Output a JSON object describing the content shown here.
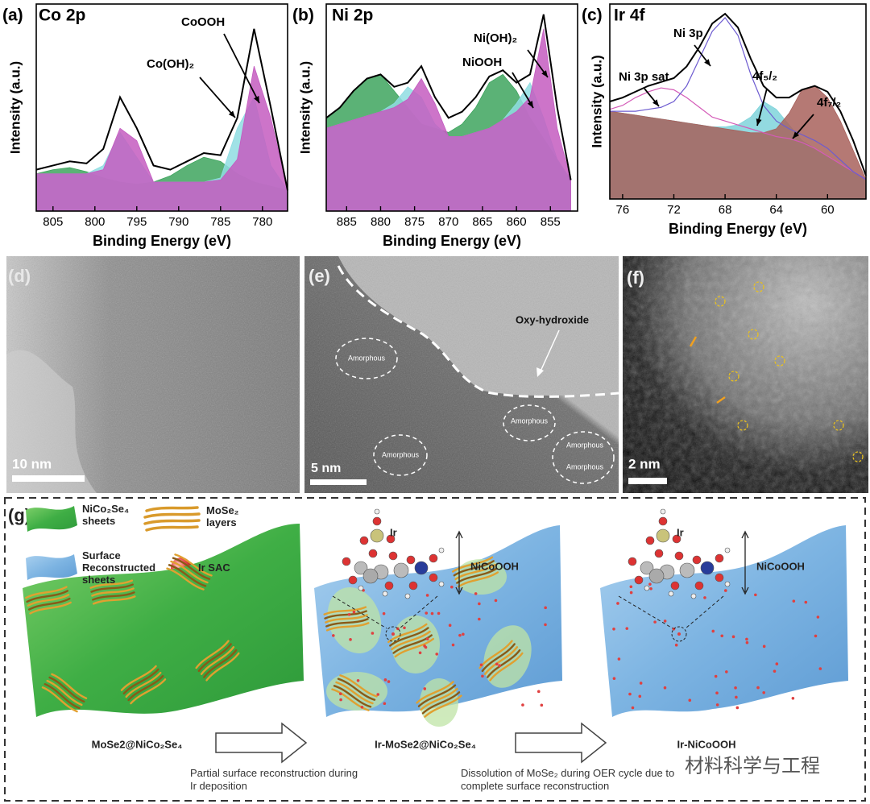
{
  "chart_data": [
    {
      "type": "line",
      "panel": "(a)",
      "title": "Co 2p",
      "x_label": "Binding Energy (eV)",
      "y_label": "Intensity (a.u.)",
      "xlim": [
        807,
        777
      ],
      "xticks": [
        805,
        800,
        795,
        790,
        785,
        780
      ],
      "ylim": [
        0,
        100
      ],
      "x": [
        807,
        805,
        803,
        801,
        799,
        797,
        795,
        793,
        791,
        789,
        787,
        785,
        783,
        781,
        779,
        777
      ],
      "series": [
        {
          "color": "#3ea45e",
          "fill": true,
          "values": [
            18,
            20,
            21,
            19,
            16,
            14,
            13,
            14,
            17,
            22,
            26,
            24,
            18,
            14,
            12,
            10
          ]
        },
        {
          "color": "#8fdde2",
          "fill": true,
          "values": [
            18,
            18,
            18,
            18,
            22,
            38,
            26,
            14,
            14,
            14,
            14,
            16,
            40,
            55,
            22,
            10
          ]
        },
        {
          "color": "#c45cc0",
          "fill": true,
          "values": [
            18,
            18,
            18,
            18,
            20,
            40,
            34,
            14,
            14,
            14,
            14,
            15,
            25,
            70,
            45,
            10
          ]
        },
        {
          "color": "#000000",
          "fill": false,
          "values": [
            20,
            22,
            24,
            23,
            30,
            55,
            40,
            22,
            20,
            24,
            28,
            27,
            45,
            88,
            50,
            10
          ]
        }
      ],
      "annotations": [
        "Co(OH)₂",
        "CoOOH"
      ]
    },
    {
      "type": "line",
      "panel": "(b)",
      "title": "Ni 2p",
      "x_label": "Binding Energy (eV)",
      "y_label": "Intensity (a.u.)",
      "xlim": [
        888,
        851
      ],
      "xticks": [
        885,
        880,
        875,
        870,
        865,
        860,
        855
      ],
      "ylim": [
        0,
        100
      ],
      "x": [
        888,
        886,
        884,
        882,
        880,
        878,
        876,
        874,
        872,
        870,
        868,
        866,
        864,
        862,
        860,
        858,
        856,
        854,
        852
      ],
      "series": [
        {
          "color": "#3ea45e",
          "fill": true,
          "values": [
            45,
            50,
            58,
            64,
            66,
            58,
            50,
            42,
            40,
            38,
            42,
            50,
            62,
            66,
            58,
            45,
            35,
            25,
            15
          ]
        },
        {
          "color": "#8fdde2",
          "fill": true,
          "values": [
            40,
            42,
            44,
            46,
            48,
            52,
            60,
            55,
            42,
            36,
            36,
            38,
            40,
            44,
            52,
            62,
            45,
            25,
            15
          ]
        },
        {
          "color": "#c45cc0",
          "fill": true,
          "values": [
            40,
            42,
            44,
            46,
            48,
            50,
            54,
            64,
            52,
            36,
            36,
            38,
            40,
            44,
            48,
            55,
            88,
            40,
            15
          ]
        },
        {
          "color": "#000000",
          "fill": false,
          "values": [
            45,
            50,
            58,
            64,
            66,
            60,
            62,
            70,
            55,
            45,
            48,
            55,
            65,
            68,
            62,
            66,
            95,
            50,
            15
          ]
        }
      ],
      "annotations": [
        "Ni(OH)₂",
        "NiOOH"
      ]
    },
    {
      "type": "line",
      "panel": "(c)",
      "title": "Ir 4f",
      "x_label": "Binding Energy (eV)",
      "y_label": "Intensity (a.u.)",
      "xlim": [
        77,
        57
      ],
      "xticks": [
        76,
        72,
        68,
        64,
        60
      ],
      "ylim": [
        0,
        100
      ],
      "x": [
        77,
        76,
        75,
        74,
        73,
        72,
        71,
        70,
        69,
        68,
        67,
        66,
        65,
        64,
        63,
        62,
        61,
        60,
        59,
        58,
        57
      ],
      "series": [
        {
          "color": "#a6e0e6",
          "fill": true,
          "values": [
            45,
            44,
            43,
            42,
            41,
            40,
            39,
            38,
            37,
            36,
            35,
            34,
            33,
            32,
            31,
            29,
            26,
            22,
            18,
            14,
            10
          ]
        },
        {
          "color": "#7fd3da",
          "fill": true,
          "values": [
            45,
            44,
            43,
            42,
            41,
            40,
            39,
            38,
            37,
            37,
            38,
            42,
            50,
            46,
            38,
            30,
            26,
            22,
            18,
            14,
            10
          ]
        },
        {
          "color": "#a8615c",
          "fill": true,
          "values": [
            45,
            44,
            43,
            42,
            41,
            40,
            39,
            38,
            37,
            36,
            35,
            34,
            34,
            36,
            44,
            56,
            58,
            52,
            40,
            25,
            10
          ]
        },
        {
          "color": "#d45bb8",
          "fill": false,
          "values": [
            46,
            48,
            52,
            55,
            57,
            56,
            52,
            47,
            42,
            40,
            38,
            36,
            34,
            32,
            31,
            29,
            26,
            22,
            18,
            14,
            10
          ]
        },
        {
          "color": "#6d5bd0",
          "fill": false,
          "values": [
            45,
            45,
            45,
            46,
            47,
            50,
            58,
            72,
            86,
            93,
            84,
            64,
            48,
            40,
            36,
            33,
            30,
            26,
            20,
            14,
            10
          ]
        },
        {
          "color": "#000000",
          "fill": false,
          "values": [
            50,
            52,
            55,
            58,
            60,
            62,
            68,
            78,
            90,
            95,
            88,
            72,
            58,
            52,
            52,
            56,
            58,
            55,
            45,
            30,
            12
          ]
        }
      ],
      "annotations": [
        "Ni 3p",
        "Ni 3p sat",
        "4f₅/₂",
        "4f₇/₂"
      ]
    }
  ],
  "micrographs": [
    {
      "label": "(d)",
      "scale_bar": "10 nm"
    },
    {
      "label": "(e)",
      "scale_bar": "5 nm",
      "annotation": "Oxy-hydroxide",
      "regions": [
        "Amorphous",
        "Amorphous",
        "Amorphous",
        "Amorphous",
        "Amorphous"
      ]
    },
    {
      "label": "(f)",
      "scale_bar": "2 nm"
    }
  ],
  "schematic": {
    "label": "(g)",
    "legend": [
      "NiCo₂Se₄ sheets",
      "MoSe₂ layers",
      "Surface Reconstructed sheets",
      "Ir SAC"
    ],
    "stages": [
      {
        "title": "MoSe2@NiCo₂Se₄"
      },
      {
        "title": "Ir-MoSe2@NiCo₂Se₄",
        "site": "Ir",
        "layer": "NiCoOOH"
      },
      {
        "title": "Ir-NiCoOOH",
        "site": "Ir",
        "layer": "NiCoOOH"
      }
    ],
    "transitions": [
      "Partial surface reconstruction during Ir deposition",
      "Dissolution of MoSe₂ during OER cycle due to complete surface reconstruction"
    ],
    "watermark": "材料科学与工程"
  }
}
